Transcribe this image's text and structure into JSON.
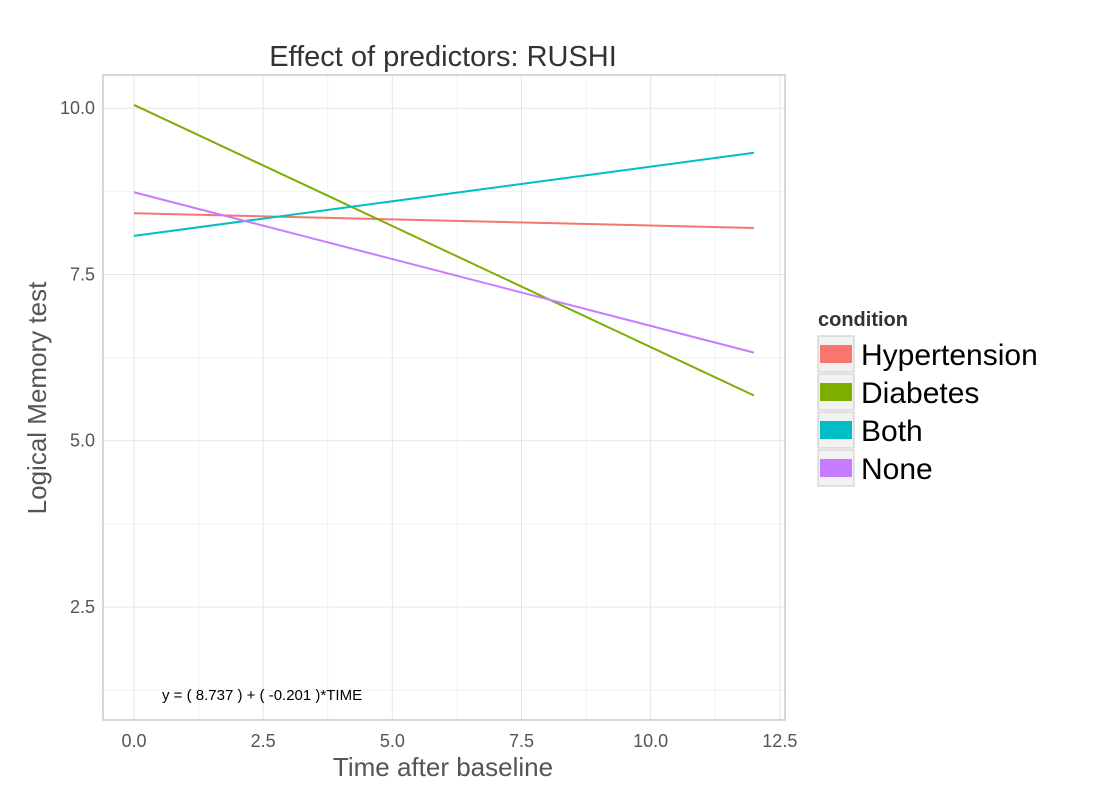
{
  "chart_data": {
    "type": "line",
    "title": "Effect of predictors: RUSHI",
    "xlabel": "Time after baseline",
    "ylabel": "Logical Memory test",
    "xlim": [
      -0.6,
      12.6
    ],
    "ylim": [
      0.8,
      10.5
    ],
    "xticks": [
      0.0,
      2.5,
      5.0,
      7.5,
      10.0,
      12.5
    ],
    "xtick_labels": [
      "0.0",
      "2.5",
      "5.0",
      "7.5",
      "10.0",
      "12.5"
    ],
    "yticks": [
      2.5,
      5.0,
      7.5,
      10.0
    ],
    "ytick_labels": [
      "2.5",
      "5.0",
      "7.5",
      "10.0"
    ],
    "grid": true,
    "legend": {
      "title": "condition",
      "position": "right"
    },
    "series": [
      {
        "name": "Hypertension",
        "color": "#F8766D",
        "x": [
          0,
          12
        ],
        "y": [
          8.42,
          8.2
        ]
      },
      {
        "name": "Diabetes",
        "color": "#7CAE00",
        "x": [
          0,
          12
        ],
        "y": [
          10.05,
          5.68
        ]
      },
      {
        "name": "Both",
        "color": "#00BFC4",
        "x": [
          0,
          12
        ],
        "y": [
          8.08,
          9.33
        ]
      },
      {
        "name": "None",
        "color": "#C77CFF",
        "x": [
          0,
          12
        ],
        "y": [
          8.737,
          6.325
        ]
      }
    ],
    "annotation": "y = ( 8.737 ) + ( -0.201 )*TIME"
  }
}
